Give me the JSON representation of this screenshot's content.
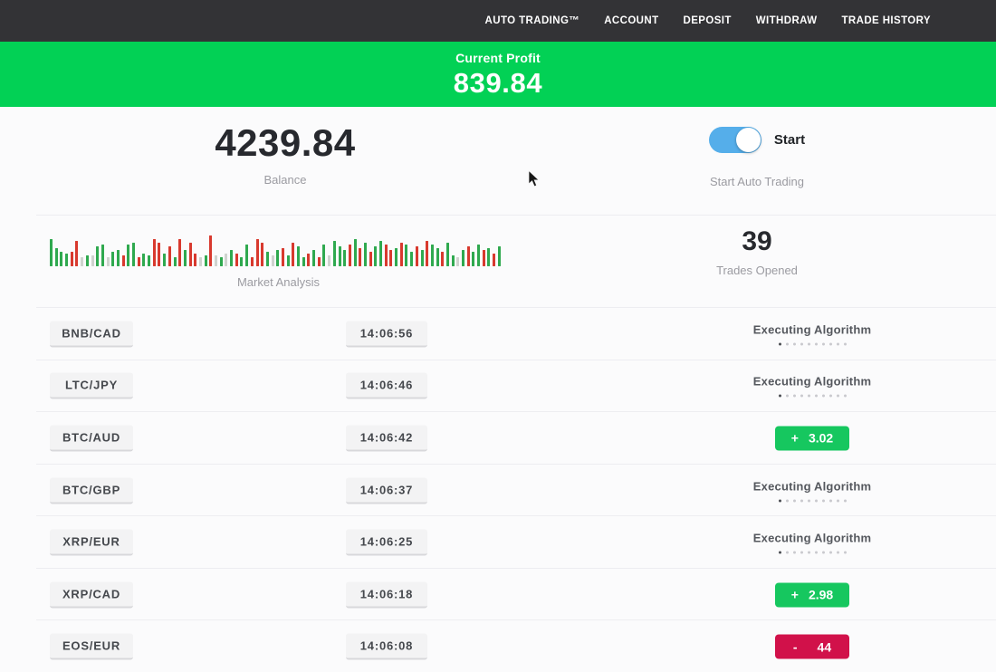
{
  "nav": {
    "items": [
      "AUTO TRADING™",
      "ACCOUNT",
      "DEPOSIT",
      "WITHDRAW",
      "TRADE HISTORY"
    ]
  },
  "banner": {
    "label": "Current Profit",
    "value": "839.84"
  },
  "balance": {
    "value": "4239.84",
    "caption": "Balance"
  },
  "auto_trading": {
    "toggle_state": "true",
    "toggle_label": "Start",
    "caption": "Start Auto Trading"
  },
  "market_analysis": {
    "caption": "Market Analysis",
    "bars": [
      [
        "g",
        30
      ],
      [
        "g",
        20
      ],
      [
        "g",
        16
      ],
      [
        "g",
        14
      ],
      [
        "r",
        16
      ],
      [
        "r",
        28
      ],
      [
        "p",
        10
      ],
      [
        "g",
        12
      ],
      [
        "p",
        12
      ],
      [
        "g",
        22
      ],
      [
        "g",
        24
      ],
      [
        "p",
        10
      ],
      [
        "g",
        16
      ],
      [
        "g",
        18
      ],
      [
        "r",
        12
      ],
      [
        "g",
        24
      ],
      [
        "g",
        26
      ],
      [
        "r",
        10
      ],
      [
        "g",
        14
      ],
      [
        "g",
        12
      ],
      [
        "r",
        30
      ],
      [
        "r",
        26
      ],
      [
        "g",
        14
      ],
      [
        "r",
        22
      ],
      [
        "g",
        10
      ],
      [
        "r",
        30
      ],
      [
        "g",
        18
      ],
      [
        "r",
        26
      ],
      [
        "r",
        14
      ],
      [
        "p",
        10
      ],
      [
        "g",
        12
      ],
      [
        "r",
        34
      ],
      [
        "p",
        12
      ],
      [
        "g",
        10
      ],
      [
        "p",
        14
      ],
      [
        "g",
        18
      ],
      [
        "r",
        14
      ],
      [
        "g",
        10
      ],
      [
        "g",
        24
      ],
      [
        "r",
        10
      ],
      [
        "r",
        30
      ],
      [
        "r",
        26
      ],
      [
        "g",
        16
      ],
      [
        "p",
        12
      ],
      [
        "g",
        18
      ],
      [
        "r",
        20
      ],
      [
        "g",
        12
      ],
      [
        "r",
        26
      ],
      [
        "g",
        22
      ],
      [
        "g",
        10
      ],
      [
        "r",
        14
      ],
      [
        "g",
        18
      ],
      [
        "r",
        10
      ],
      [
        "g",
        24
      ],
      [
        "p",
        12
      ],
      [
        "g",
        28
      ],
      [
        "g",
        22
      ],
      [
        "g",
        18
      ],
      [
        "r",
        24
      ],
      [
        "g",
        30
      ],
      [
        "r",
        20
      ],
      [
        "g",
        26
      ],
      [
        "r",
        16
      ],
      [
        "g",
        22
      ],
      [
        "g",
        28
      ],
      [
        "r",
        24
      ],
      [
        "r",
        18
      ],
      [
        "g",
        20
      ],
      [
        "r",
        26
      ],
      [
        "g",
        24
      ],
      [
        "g",
        16
      ],
      [
        "r",
        22
      ],
      [
        "g",
        18
      ],
      [
        "r",
        28
      ],
      [
        "g",
        24
      ],
      [
        "g",
        20
      ],
      [
        "r",
        16
      ],
      [
        "g",
        26
      ],
      [
        "g",
        12
      ],
      [
        "p",
        10
      ],
      [
        "g",
        18
      ],
      [
        "r",
        22
      ],
      [
        "g",
        16
      ],
      [
        "g",
        24
      ],
      [
        "r",
        18
      ],
      [
        "g",
        20
      ],
      [
        "r",
        14
      ],
      [
        "g",
        22
      ]
    ]
  },
  "trades_opened": {
    "value": "39",
    "caption": "Trades Opened"
  },
  "trades": {
    "executing_label": "Executing Algorithm",
    "rows": [
      {
        "pair": "BNB/CAD",
        "time": "14:06:56",
        "result": {
          "kind": "executing"
        }
      },
      {
        "pair": "LTC/JPY",
        "time": "14:06:46",
        "result": {
          "kind": "executing"
        }
      },
      {
        "pair": "BTC/AUD",
        "time": "14:06:42",
        "result": {
          "kind": "profit",
          "sign": "+",
          "value": "3.02"
        }
      },
      {
        "pair": "BTC/GBP",
        "time": "14:06:37",
        "result": {
          "kind": "executing"
        }
      },
      {
        "pair": "XRP/EUR",
        "time": "14:06:25",
        "result": {
          "kind": "executing"
        }
      },
      {
        "pair": "XRP/CAD",
        "time": "14:06:18",
        "result": {
          "kind": "profit",
          "sign": "+",
          "value": "2.98"
        }
      },
      {
        "pair": "EOS/EUR",
        "time": "14:06:08",
        "result": {
          "kind": "loss",
          "sign": "-",
          "value": "44"
        }
      }
    ]
  },
  "colors": {
    "nav_bg": "#333336",
    "banner_green": "#02d155",
    "profit_green": "#16c75f",
    "loss_red": "#d1114a",
    "toggle_blue": "#55aeea",
    "bar_green": "#2fa94f",
    "bar_red": "#d8392e",
    "bar_pale": "#cfd3cf"
  }
}
